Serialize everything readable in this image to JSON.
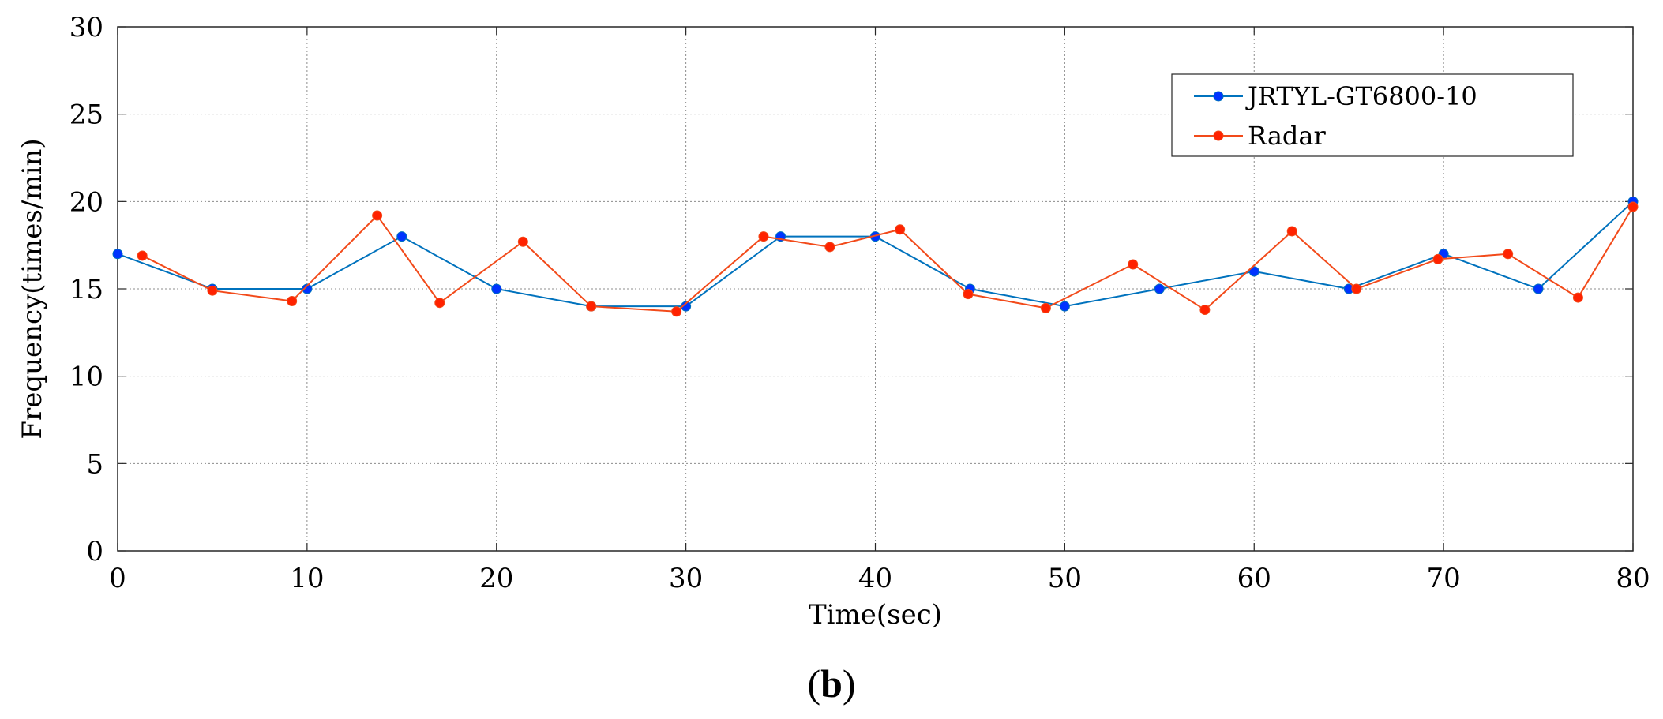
{
  "chart_data": {
    "type": "line",
    "xlabel": "Time(sec)",
    "ylabel": "Frequency(times/min)",
    "xlim": [
      0,
      80
    ],
    "ylim": [
      0,
      30
    ],
    "xticks": [
      0,
      10,
      20,
      30,
      40,
      50,
      60,
      70,
      80
    ],
    "yticks": [
      0,
      5,
      10,
      15,
      20,
      25,
      30
    ],
    "grid": true,
    "legend_position": "top-right",
    "series": [
      {
        "name": "JRTYL-GT6800-10",
        "color": "#0072BD",
        "marker_color": "#0033FF",
        "x": [
          0,
          5,
          10,
          15,
          20,
          25,
          30,
          35,
          40,
          45,
          50,
          55,
          60,
          65,
          70,
          75,
          80
        ],
        "y": [
          17,
          15,
          15,
          18,
          15,
          14,
          14,
          18,
          18,
          15,
          14,
          15,
          16,
          15,
          17,
          15,
          20
        ]
      },
      {
        "name": "Radar",
        "color": "#F24A1A",
        "marker_color": "#FF2200",
        "x": [
          1.3,
          5.0,
          9.2,
          13.7,
          17.0,
          21.4,
          25.0,
          29.5,
          34.1,
          37.6,
          41.3,
          44.9,
          49.0,
          53.6,
          57.4,
          62.0,
          65.4,
          69.7,
          73.4,
          77.1,
          80
        ],
        "y": [
          16.9,
          14.9,
          14.3,
          19.2,
          14.2,
          17.7,
          14.0,
          13.7,
          18.0,
          17.4,
          18.4,
          14.7,
          13.9,
          16.4,
          13.8,
          18.3,
          15.0,
          16.7,
          17.0,
          14.5,
          19.7
        ]
      }
    ]
  },
  "panel_label": {
    "open": "(",
    "letter": "b",
    "close": ")"
  }
}
